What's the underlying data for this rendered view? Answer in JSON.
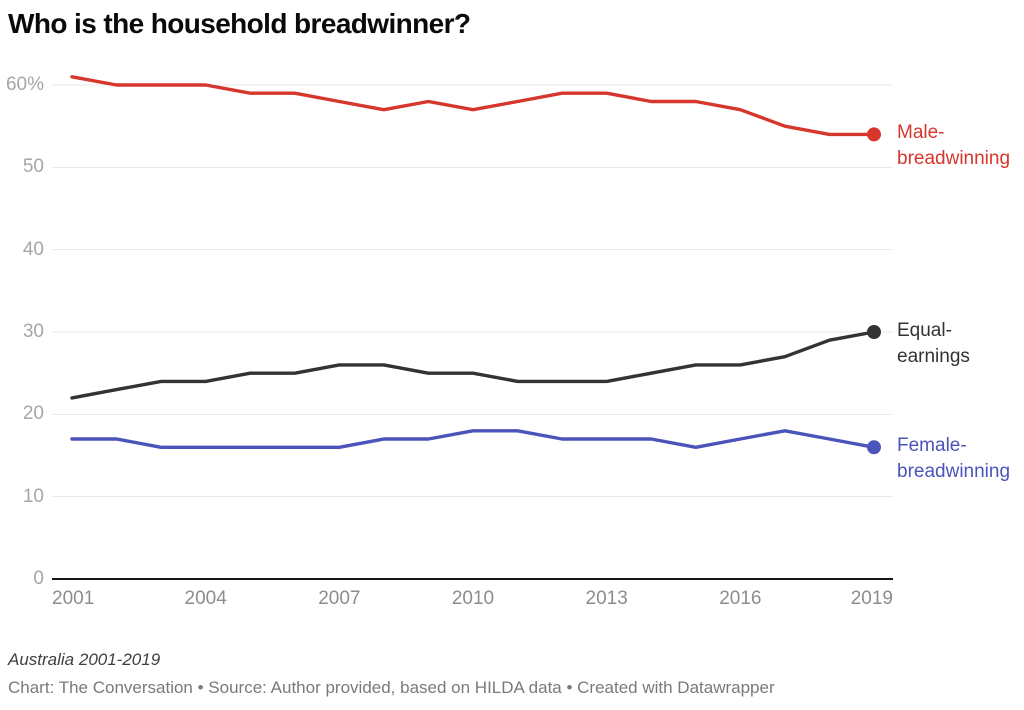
{
  "header": {
    "title": "Who is the household breadwinner?"
  },
  "footer": {
    "subtitle": "Australia 2001-2019",
    "credit": "Chart: The Conversation • Source: Author provided, based on HILDA data • Created with Datawrapper"
  },
  "colors": {
    "grid": "#e7e7e7",
    "baseline": "#151515",
    "y_axis_text": "#a6a6a6",
    "x_axis_text": "#8d8d8d",
    "title_text": "#0a0a0a",
    "subtitle_text": "#3f3f3f",
    "credit_text": "#7a7a7a",
    "male": "#d6362c",
    "equal": "#333333",
    "female": "#4b54ba"
  },
  "chart_data": {
    "type": "line",
    "title": "Who is the household breadwinner?",
    "x": [
      2001,
      2002,
      2003,
      2004,
      2005,
      2006,
      2007,
      2008,
      2009,
      2010,
      2011,
      2012,
      2013,
      2014,
      2015,
      2016,
      2017,
      2018,
      2019
    ],
    "xticks": [
      2001,
      2004,
      2007,
      2010,
      2013,
      2016,
      2019
    ],
    "yticks": [
      {
        "value": 0,
        "label": "0"
      },
      {
        "value": 10,
        "label": "10"
      },
      {
        "value": 20,
        "label": "20"
      },
      {
        "value": 30,
        "label": "30"
      },
      {
        "value": 40,
        "label": "40"
      },
      {
        "value": 50,
        "label": "50"
      },
      {
        "value": 60,
        "label": "60%"
      }
    ],
    "ylim": [
      0,
      62
    ],
    "grid": "horizontal-only",
    "legend_position": "right-of-line-ends",
    "series": [
      {
        "name": "male-breadwinning",
        "label": "Male-breadwinning",
        "color": "#d6362c",
        "values": [
          61,
          60,
          60,
          60,
          59,
          59,
          58,
          57,
          58,
          57,
          58,
          59,
          59,
          58,
          58,
          57,
          55,
          54,
          54
        ]
      },
      {
        "name": "equal-earnings",
        "label": "Equal-earnings",
        "color": "#333333",
        "values": [
          22,
          23,
          24,
          24,
          25,
          25,
          26,
          26,
          25,
          25,
          24,
          24,
          24,
          25,
          26,
          26,
          27,
          29,
          30
        ]
      },
      {
        "name": "female-breadwinning",
        "label": "Female-breadwinning",
        "color": "#4b54ba",
        "values": [
          17,
          17,
          16,
          16,
          16,
          16,
          16,
          17,
          17,
          18,
          18,
          17,
          17,
          17,
          16,
          17,
          18,
          17,
          16
        ]
      }
    ]
  }
}
